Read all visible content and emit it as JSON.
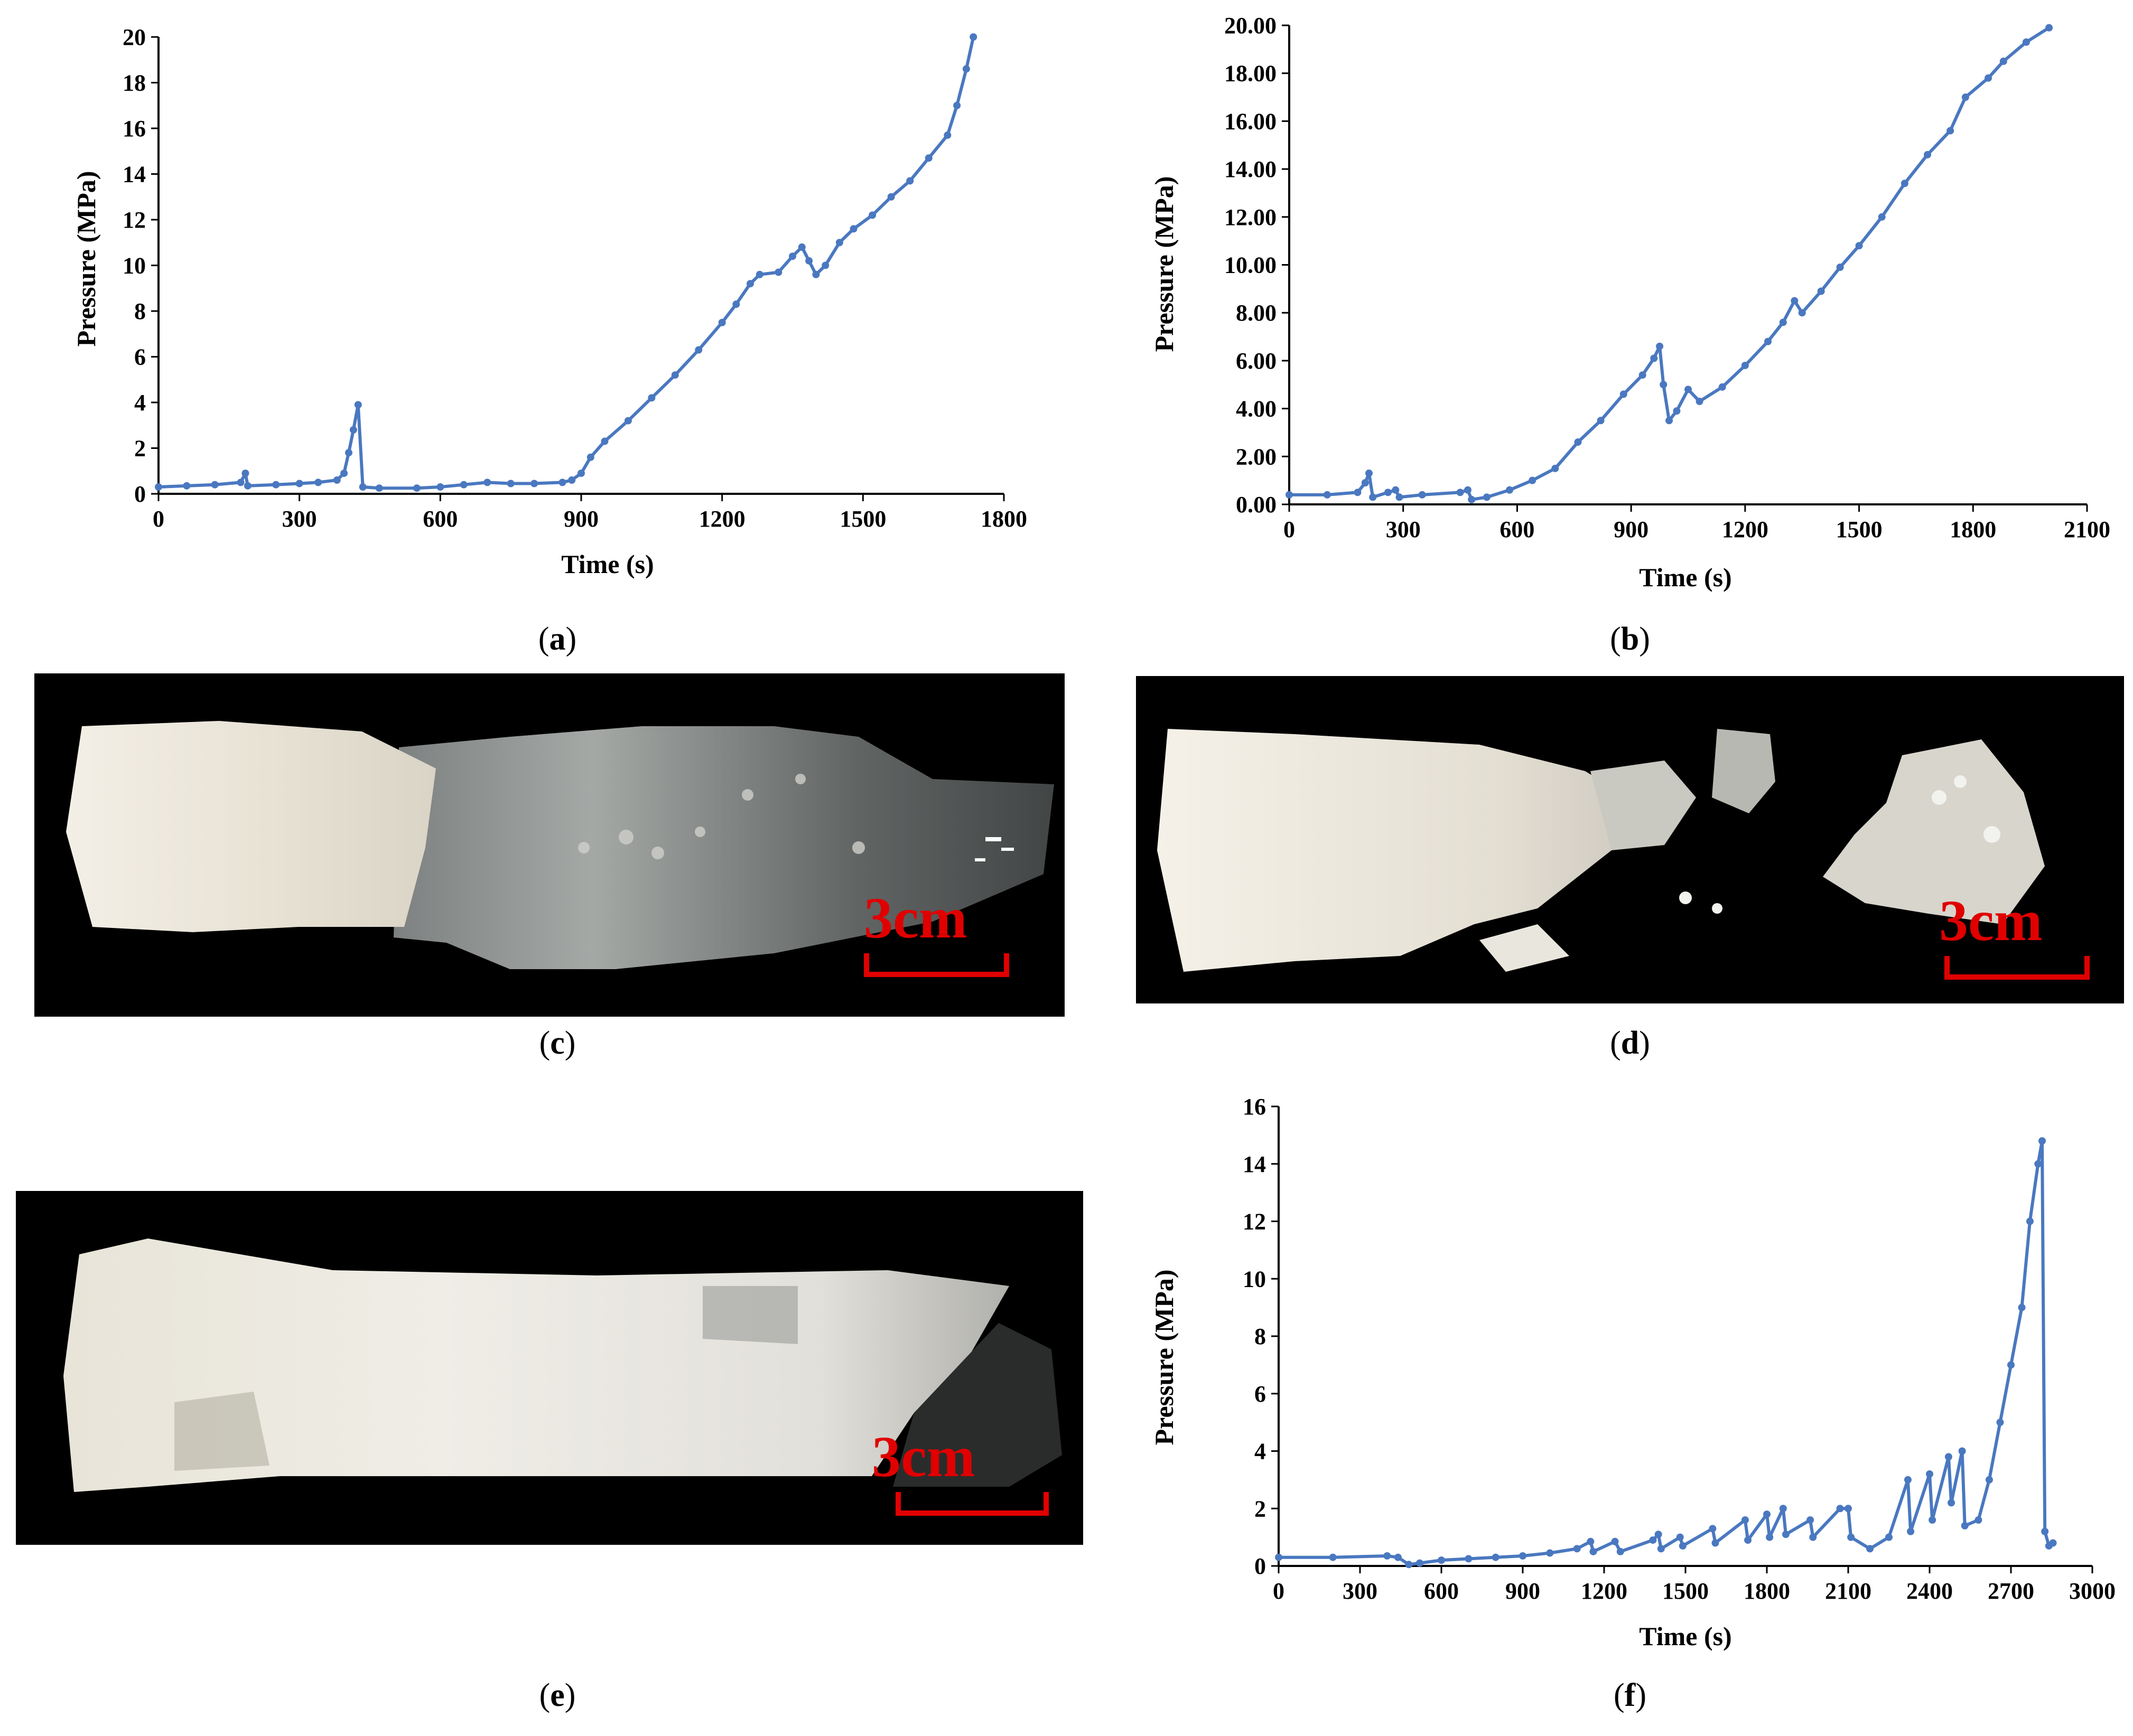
{
  "chart_data": [
    {
      "id": "a",
      "type": "line",
      "xlabel": "Time  (s)",
      "ylabel": "Pressure (MPa)",
      "xlim": [
        0,
        1800
      ],
      "ylim": [
        0,
        20
      ],
      "xticks": [
        "0",
        "300",
        "600",
        "900",
        "1200",
        "1500",
        "1800"
      ],
      "yticks": [
        "0",
        "2",
        "4",
        "6",
        "8",
        "10",
        "12",
        "14",
        "16",
        "18",
        "20"
      ],
      "color": "#4a78c0",
      "points": [
        [
          0,
          0.3
        ],
        [
          60,
          0.35
        ],
        [
          120,
          0.4
        ],
        [
          175,
          0.5
        ],
        [
          185,
          0.9
        ],
        [
          190,
          0.35
        ],
        [
          250,
          0.4
        ],
        [
          300,
          0.45
        ],
        [
          340,
          0.5
        ],
        [
          380,
          0.6
        ],
        [
          395,
          0.9
        ],
        [
          405,
          1.8
        ],
        [
          415,
          2.8
        ],
        [
          425,
          3.9
        ],
        [
          435,
          0.3
        ],
        [
          470,
          0.25
        ],
        [
          550,
          0.25
        ],
        [
          600,
          0.3
        ],
        [
          650,
          0.4
        ],
        [
          700,
          0.5
        ],
        [
          750,
          0.45
        ],
        [
          800,
          0.45
        ],
        [
          860,
          0.5
        ],
        [
          880,
          0.6
        ],
        [
          900,
          0.9
        ],
        [
          920,
          1.6
        ],
        [
          950,
          2.3
        ],
        [
          1000,
          3.2
        ],
        [
          1050,
          4.2
        ],
        [
          1100,
          5.2
        ],
        [
          1150,
          6.3
        ],
        [
          1200,
          7.5
        ],
        [
          1230,
          8.3
        ],
        [
          1260,
          9.2
        ],
        [
          1280,
          9.6
        ],
        [
          1320,
          9.7
        ],
        [
          1350,
          10.4
        ],
        [
          1370,
          10.8
        ],
        [
          1385,
          10.2
        ],
        [
          1400,
          9.6
        ],
        [
          1420,
          10.0
        ],
        [
          1450,
          11.0
        ],
        [
          1480,
          11.6
        ],
        [
          1520,
          12.2
        ],
        [
          1560,
          13.0
        ],
        [
          1600,
          13.7
        ],
        [
          1640,
          14.7
        ],
        [
          1680,
          15.7
        ],
        [
          1700,
          17.0
        ],
        [
          1720,
          18.6
        ],
        [
          1735,
          20.0
        ]
      ]
    },
    {
      "id": "b",
      "type": "line",
      "xlabel": "Time  (s)",
      "ylabel": "Pressure (MPa)",
      "xlim": [
        0,
        2100
      ],
      "ylim": [
        0,
        20
      ],
      "xticks": [
        "0",
        "300",
        "600",
        "900",
        "1200",
        "1500",
        "1800",
        "2100"
      ],
      "yticks": [
        "0.00",
        "2.00",
        "4.00",
        "6.00",
        "8.00",
        "10.00",
        "12.00",
        "14.00",
        "16.00",
        "18.00",
        "20.00"
      ],
      "color": "#4a78c0",
      "points": [
        [
          0,
          0.4
        ],
        [
          100,
          0.4
        ],
        [
          180,
          0.5
        ],
        [
          200,
          0.9
        ],
        [
          210,
          1.3
        ],
        [
          220,
          0.3
        ],
        [
          260,
          0.5
        ],
        [
          280,
          0.6
        ],
        [
          290,
          0.3
        ],
        [
          350,
          0.4
        ],
        [
          450,
          0.5
        ],
        [
          470,
          0.6
        ],
        [
          480,
          0.2
        ],
        [
          520,
          0.3
        ],
        [
          580,
          0.6
        ],
        [
          640,
          1.0
        ],
        [
          700,
          1.5
        ],
        [
          760,
          2.6
        ],
        [
          820,
          3.5
        ],
        [
          880,
          4.6
        ],
        [
          930,
          5.4
        ],
        [
          960,
          6.1
        ],
        [
          975,
          6.6
        ],
        [
          985,
          5.0
        ],
        [
          1000,
          3.5
        ],
        [
          1020,
          3.9
        ],
        [
          1050,
          4.8
        ],
        [
          1080,
          4.3
        ],
        [
          1140,
          4.9
        ],
        [
          1200,
          5.8
        ],
        [
          1260,
          6.8
        ],
        [
          1300,
          7.6
        ],
        [
          1330,
          8.5
        ],
        [
          1350,
          8.0
        ],
        [
          1400,
          8.9
        ],
        [
          1450,
          9.9
        ],
        [
          1500,
          10.8
        ],
        [
          1560,
          12.0
        ],
        [
          1620,
          13.4
        ],
        [
          1680,
          14.6
        ],
        [
          1740,
          15.6
        ],
        [
          1780,
          17.0
        ],
        [
          1840,
          17.8
        ],
        [
          1880,
          18.5
        ],
        [
          1940,
          19.3
        ],
        [
          2000,
          19.9
        ]
      ]
    },
    {
      "id": "f",
      "type": "line",
      "xlabel": "Time  (s)",
      "ylabel": "Pressure  (MPa)",
      "xlim": [
        0,
        3000
      ],
      "ylim": [
        0,
        16
      ],
      "xticks": [
        "0",
        "300",
        "600",
        "900",
        "1200",
        "1500",
        "1800",
        "2100",
        "2400",
        "2700",
        "3000"
      ],
      "yticks": [
        "0",
        "2",
        "4",
        "6",
        "8",
        "10",
        "12",
        "14",
        "16"
      ],
      "color": "#4a78c0",
      "points": [
        [
          0,
          0.3
        ],
        [
          200,
          0.3
        ],
        [
          400,
          0.35
        ],
        [
          440,
          0.3
        ],
        [
          480,
          0.05
        ],
        [
          520,
          0.1
        ],
        [
          600,
          0.2
        ],
        [
          700,
          0.25
        ],
        [
          800,
          0.3
        ],
        [
          900,
          0.35
        ],
        [
          1000,
          0.45
        ],
        [
          1100,
          0.6
        ],
        [
          1150,
          0.85
        ],
        [
          1160,
          0.5
        ],
        [
          1240,
          0.85
        ],
        [
          1260,
          0.5
        ],
        [
          1380,
          0.9
        ],
        [
          1400,
          1.1
        ],
        [
          1410,
          0.6
        ],
        [
          1480,
          1.0
        ],
        [
          1490,
          0.7
        ],
        [
          1600,
          1.3
        ],
        [
          1610,
          0.8
        ],
        [
          1720,
          1.6
        ],
        [
          1730,
          0.9
        ],
        [
          1800,
          1.8
        ],
        [
          1810,
          1.0
        ],
        [
          1860,
          2.0
        ],
        [
          1870,
          1.1
        ],
        [
          1960,
          1.6
        ],
        [
          1970,
          1.0
        ],
        [
          2070,
          2.0
        ],
        [
          2100,
          2.0
        ],
        [
          2110,
          1.0
        ],
        [
          2180,
          0.6
        ],
        [
          2250,
          1.0
        ],
        [
          2320,
          3.0
        ],
        [
          2330,
          1.2
        ],
        [
          2400,
          3.2
        ],
        [
          2410,
          1.6
        ],
        [
          2470,
          3.8
        ],
        [
          2480,
          2.2
        ],
        [
          2520,
          4.0
        ],
        [
          2530,
          1.4
        ],
        [
          2580,
          1.6
        ],
        [
          2620,
          3.0
        ],
        [
          2660,
          5.0
        ],
        [
          2700,
          7.0
        ],
        [
          2740,
          9.0
        ],
        [
          2770,
          12.0
        ],
        [
          2800,
          14.0
        ],
        [
          2815,
          14.8
        ],
        [
          2825,
          1.2
        ],
        [
          2840,
          0.7
        ],
        [
          2855,
          0.8
        ]
      ]
    }
  ],
  "captions": {
    "a": "a",
    "b": "b",
    "c": "c",
    "d": "d",
    "e": "e",
    "f": "f"
  },
  "photos": {
    "scale_label": "3cm"
  }
}
